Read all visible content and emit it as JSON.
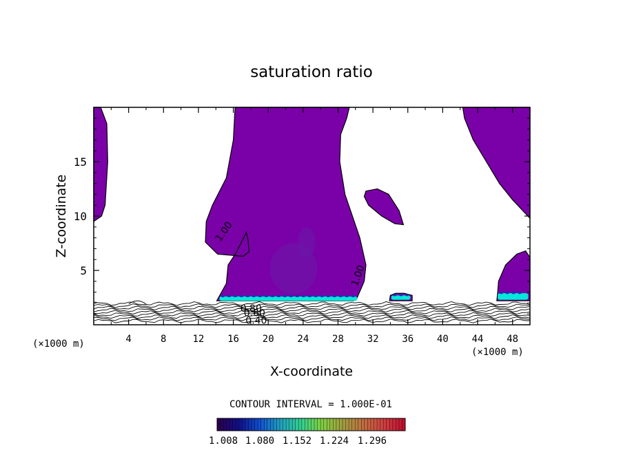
{
  "chart_data": {
    "type": "contour",
    "title": "saturation ratio",
    "xlabel": "X-coordinate",
    "ylabel": "Z-coordinate",
    "x_unit_left": "(×1000 m)",
    "x_unit_right": "(×1000 m)",
    "xlim": [
      0,
      50
    ],
    "ylim": [
      0,
      20
    ],
    "x_ticks": [
      4,
      8,
      12,
      16,
      20,
      24,
      28,
      32,
      36,
      40,
      44,
      48
    ],
    "y_ticks": [
      5,
      10,
      15
    ],
    "contour_labels": [
      "1.00",
      "1.00",
      "0.80",
      "0.60",
      "0.40"
    ],
    "contour_interval_text": "CONTOUR INTERVAL = 1.000E-01",
    "colorbar_ticks": [
      "1.008",
      "1.080",
      "1.152",
      "1.224",
      "1.296"
    ],
    "fill_color": "#7a00a8",
    "colorbar_colors": [
      "#2a0050",
      "#10108a",
      "#1050d0",
      "#20a0c0",
      "#30d090",
      "#80d040",
      "#a0a040",
      "#c07040",
      "#d04040",
      "#c01030"
    ],
    "regions": [
      {
        "name": "left-plume",
        "points": [
          [
            0,
            20
          ],
          [
            0.8,
            20
          ],
          [
            1.5,
            18.5
          ],
          [
            1.6,
            15
          ],
          [
            1.3,
            11
          ],
          [
            0.9,
            10
          ],
          [
            0,
            9.5
          ]
        ]
      },
      {
        "name": "central-plume",
        "points": [
          [
            16.2,
            20
          ],
          [
            29.3,
            20
          ],
          [
            29,
            19
          ],
          [
            28.3,
            17.5
          ],
          [
            28.2,
            15
          ],
          [
            28.8,
            12
          ],
          [
            30.5,
            8
          ],
          [
            31.2,
            5.5
          ],
          [
            31,
            4
          ],
          [
            30.2,
            2.5
          ],
          [
            29.8,
            2.2
          ],
          [
            14.1,
            2.2
          ],
          [
            15.2,
            3.8
          ],
          [
            15.4,
            5.5
          ],
          [
            16.3,
            6.6
          ],
          [
            17,
            7.7
          ],
          [
            17.5,
            8.5
          ],
          [
            17.7,
            7.7
          ],
          [
            17.8,
            6.7
          ],
          [
            17.1,
            6.3
          ],
          [
            14.2,
            6.5
          ],
          [
            12.8,
            7.6
          ],
          [
            12.9,
            9.5
          ],
          [
            13.6,
            11
          ],
          [
            15.2,
            13.5
          ],
          [
            16,
            17
          ]
        ]
      },
      {
        "name": "upper-right-blob",
        "points": [
          [
            31.2,
            12.3
          ],
          [
            32.5,
            12.5
          ],
          [
            33.8,
            12
          ],
          [
            35,
            10.5
          ],
          [
            35.5,
            9.2
          ],
          [
            34.5,
            9.3
          ],
          [
            33,
            10
          ],
          [
            31.5,
            11
          ],
          [
            31,
            11.8
          ]
        ]
      },
      {
        "name": "right-plume",
        "points": [
          [
            42.3,
            20
          ],
          [
            50,
            20
          ],
          [
            50,
            9.8
          ],
          [
            48,
            11.5
          ],
          [
            46.5,
            13
          ],
          [
            45,
            15
          ],
          [
            43.5,
            17
          ],
          [
            42.5,
            19
          ]
        ]
      },
      {
        "name": "lower-right-cell",
        "points": [
          [
            46.2,
            2.2
          ],
          [
            50,
            2.2
          ],
          [
            50,
            6.2
          ],
          [
            49.5,
            6.8
          ],
          [
            48.5,
            6.5
          ],
          [
            47.2,
            5.5
          ],
          [
            46.4,
            4
          ],
          [
            46.3,
            3
          ]
        ]
      },
      {
        "name": "small-cell-35",
        "points": [
          [
            33.9,
            2.2
          ],
          [
            36.5,
            2.2
          ],
          [
            36.5,
            2.7
          ],
          [
            35.6,
            2.9
          ],
          [
            34.6,
            2.9
          ],
          [
            34,
            2.7
          ]
        ]
      }
    ],
    "highlight_bands": [
      {
        "x": [
          14.4,
          30.2
        ],
        "z": [
          2.2,
          2.6
        ],
        "color": "#00e8d8"
      },
      {
        "x": [
          34.1,
          36.3
        ],
        "z": [
          2.3,
          2.7
        ],
        "color": "#00e8d8"
      },
      {
        "x": [
          46.3,
          49.8
        ],
        "z": [
          2.3,
          2.9
        ],
        "color": "#00e8d8"
      }
    ],
    "inner_shading": [
      {
        "x": [
          20.2,
          25.6
        ],
        "z": [
          2.8,
          7.5
        ],
        "color": "#6a1aa8"
      },
      {
        "x": [
          23.4,
          25.4
        ],
        "z": [
          6.2,
          9.0
        ],
        "color": "#6a1aa8"
      }
    ],
    "low_level_contours_z": [
      0.35,
      0.55,
      0.75,
      0.95,
      1.15,
      1.35,
      1.55,
      1.75,
      1.95
    ]
  }
}
